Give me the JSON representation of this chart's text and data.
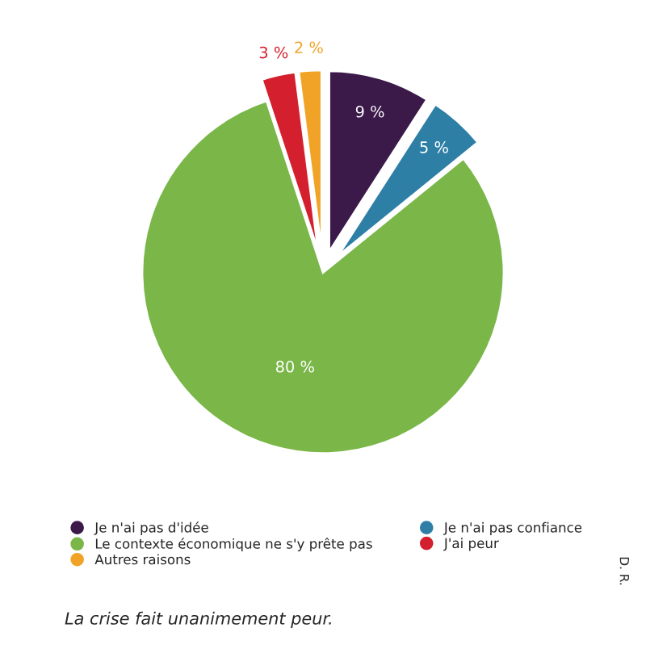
{
  "chart_data": {
    "type": "pie",
    "categories": [
      "Je n'ai pas d'idée",
      "Je n'ai pas confiance",
      "Le contexte économique ne s'y prête pas",
      "J'ai peur",
      "Autres raisons"
    ],
    "values": [
      9,
      5,
      80,
      3,
      2
    ],
    "value_labels": [
      "9 %",
      "5 %",
      "80 %",
      "3 %",
      "2 %"
    ],
    "colors": [
      "#3b1a4a",
      "#2e7fa6",
      "#7ab648",
      "#d4202e",
      "#f0a326"
    ],
    "legend": "bottom",
    "annotations": [
      "La crise fait unanimement peur.",
      "D. R."
    ]
  }
}
